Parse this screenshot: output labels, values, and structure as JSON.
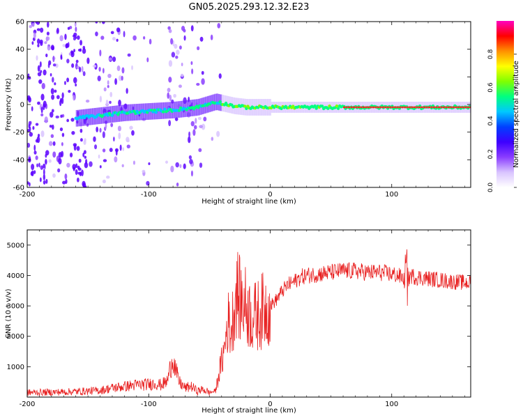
{
  "title": "GN05.2025.293.12.32.E23",
  "chart_data": [
    {
      "type": "heatmap",
      "title": "GN05.2025.293.12.32.E23",
      "xlabel": "Height of straight line (km)",
      "ylabel": "Frequency (Hz)",
      "xlim": [
        -200,
        165
      ],
      "ylim": [
        -60,
        60
      ],
      "x_ticks": [
        -200,
        -100,
        0,
        100
      ],
      "y_ticks": [
        -60,
        -40,
        -20,
        0,
        20,
        40,
        60
      ],
      "colorbar": {
        "label": "Normalized spectral amplitude",
        "range": [
          0,
          1
        ],
        "ticks": [
          0.0,
          0.2,
          0.4,
          0.6,
          0.8
        ],
        "tick_labels": [
          "0.0",
          "0.2",
          "0.4",
          "0.6",
          "0.8"
        ],
        "colors": [
          "#ffffff",
          "#d9c4ff",
          "#8a3dff",
          "#3d00ff",
          "#0040ff",
          "#00c8ff",
          "#00ff80",
          "#80ff00",
          "#ffff00",
          "#ff9000",
          "#ff0000",
          "#ff00c0"
        ]
      },
      "ridge": {
        "x": [
          -160,
          -140,
          -120,
          -100,
          -80,
          -60,
          -45,
          -40,
          -30,
          -20,
          -10,
          0,
          20,
          40,
          60,
          80,
          100,
          120,
          140,
          165
        ],
        "y": [
          -10,
          -8,
          -6,
          -5,
          -4,
          -2,
          2,
          1,
          -1,
          -2,
          -2,
          -2,
          -2,
          -2,
          -2,
          -2,
          -2,
          -2,
          -2,
          -2
        ]
      }
    },
    {
      "type": "line",
      "xlabel": "Height of straight line (km)",
      "ylabel": "SNR (10 * v/v)",
      "xlim": [
        -200,
        165
      ],
      "ylim": [
        0,
        5500
      ],
      "x_ticks": [
        -200,
        -100,
        0,
        100
      ],
      "y_ticks": [
        1000,
        2000,
        3000,
        4000,
        5000
      ],
      "series": [
        {
          "name": "SNR",
          "color": "#e82020",
          "x": [
            -200,
            -180,
            -160,
            -140,
            -130,
            -120,
            -110,
            -100,
            -95,
            -90,
            -85,
            -80,
            -78,
            -75,
            -70,
            -65,
            -60,
            -55,
            -50,
            -45,
            -42,
            -38,
            -35,
            -32,
            -28,
            -25,
            -20,
            -15,
            -10,
            -5,
            0,
            5,
            10,
            15,
            20,
            25,
            30,
            40,
            50,
            60,
            70,
            80,
            90,
            100,
            105,
            110,
            112,
            115,
            120,
            130,
            140,
            150,
            165
          ],
          "y": [
            150,
            160,
            180,
            220,
            300,
            350,
            400,
            420,
            450,
            400,
            500,
            1300,
            900,
            500,
            300,
            350,
            200,
            250,
            150,
            200,
            800,
            1500,
            2500,
            2200,
            3500,
            3200,
            3000,
            2600,
            2700,
            2900,
            3000,
            3200,
            3500,
            3700,
            3800,
            3950,
            4000,
            4050,
            4100,
            4150,
            4150,
            4100,
            4100,
            4050,
            4000,
            3900,
            3500,
            4000,
            3950,
            3900,
            3850,
            3800,
            3750
          ]
        }
      ]
    }
  ]
}
